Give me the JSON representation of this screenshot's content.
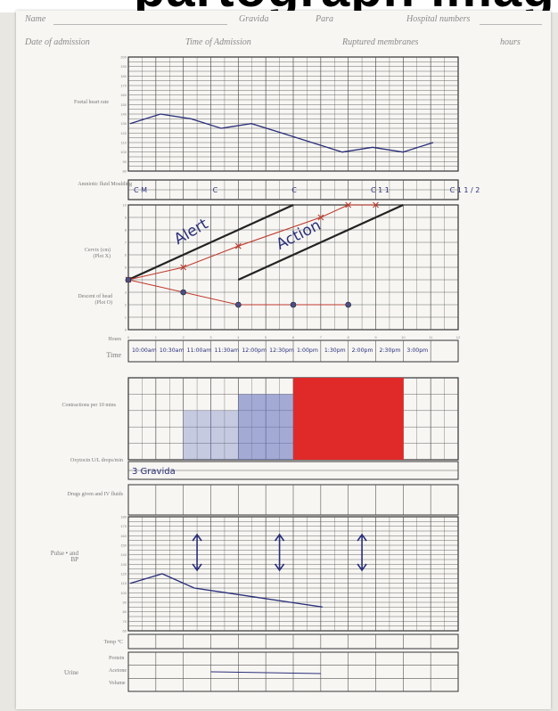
{
  "banner": {
    "text": "partograph image"
  },
  "header": {
    "name_label": "Name",
    "gravida_label": "Gravida",
    "para_label": "Para",
    "hospital_label": "Hospital numbers",
    "admission_date_label": "Date of admission",
    "admission_time_label": "Time of Admission",
    "ruptured_label": "Ruptured membranes",
    "hours_label": "hours"
  },
  "sections": {
    "fetal_heart_rate": "Foetal heart rate",
    "amniotic_fluid": "Amniotic fluid Moulding",
    "cervix": "Cervix (cm) (Plot X)",
    "descent": "Descent of head (Plot O)",
    "hours_label": "Hours",
    "time_label": "Time",
    "contractions": "Contractions per 10 mins",
    "oxytocin": "Oxytocin U/L drops/min",
    "drugs": "Drugs given and IV fluids",
    "pulse_bp": "Pulse • and BP",
    "temp": "Temp °C",
    "urine": "Urine",
    "urine_items": [
      "Protein",
      "Acetone",
      "Volume"
    ]
  },
  "chart_data": {
    "type": "line",
    "alert_line_label": "Alert",
    "action_line_label": "Action",
    "time_entries": [
      "10:00am",
      "10:30am",
      "11:00am",
      "11:30am",
      "12:00pm",
      "12:30pm",
      "1:00pm",
      "1:30pm",
      "2:00pm",
      "2:30pm",
      "3:00pm"
    ],
    "amniotic_entries": [
      "C M",
      "C",
      "C",
      "C 1 1",
      "C 1 1 / 2"
    ],
    "oxytocin_text": "3 Gravida",
    "cervix_dilation_x": [
      0,
      2,
      4,
      7,
      8,
      9
    ],
    "cervix_dilation_cm": [
      4,
      5,
      6.7,
      9,
      10,
      10
    ],
    "head_descent_x": [
      0,
      2,
      4,
      6,
      8
    ],
    "head_descent_fifths": [
      4,
      3,
      2,
      2,
      2
    ],
    "fetal_heart_rate_trend": [
      130,
      140,
      135,
      125,
      130,
      120,
      110,
      100,
      105,
      100,
      110
    ],
    "pulse_trend": [
      110,
      120,
      105,
      100,
      95,
      90,
      85
    ],
    "blood_pressure_arrows_at": [
      2.5,
      5.5,
      8.5
    ],
    "contractions_columns": [
      {
        "count": 3,
        "intensity": "dotted"
      },
      {
        "count": 3,
        "intensity": "dotted"
      },
      {
        "count": 4,
        "intensity": "hatched"
      },
      {
        "count": 4,
        "intensity": "hatched"
      },
      {
        "count": 5,
        "intensity": "solid"
      },
      {
        "count": 5,
        "intensity": "solid"
      },
      {
        "count": 5,
        "intensity": "solid"
      },
      {
        "count": 5,
        "intensity": "solid"
      }
    ],
    "colors": {
      "grid": "#555555",
      "ink_blue": "#2a2f7a",
      "ink_red": "#c0392b",
      "contraction_red": "#e02a2a",
      "contraction_blue": "#6a78c0"
    }
  }
}
